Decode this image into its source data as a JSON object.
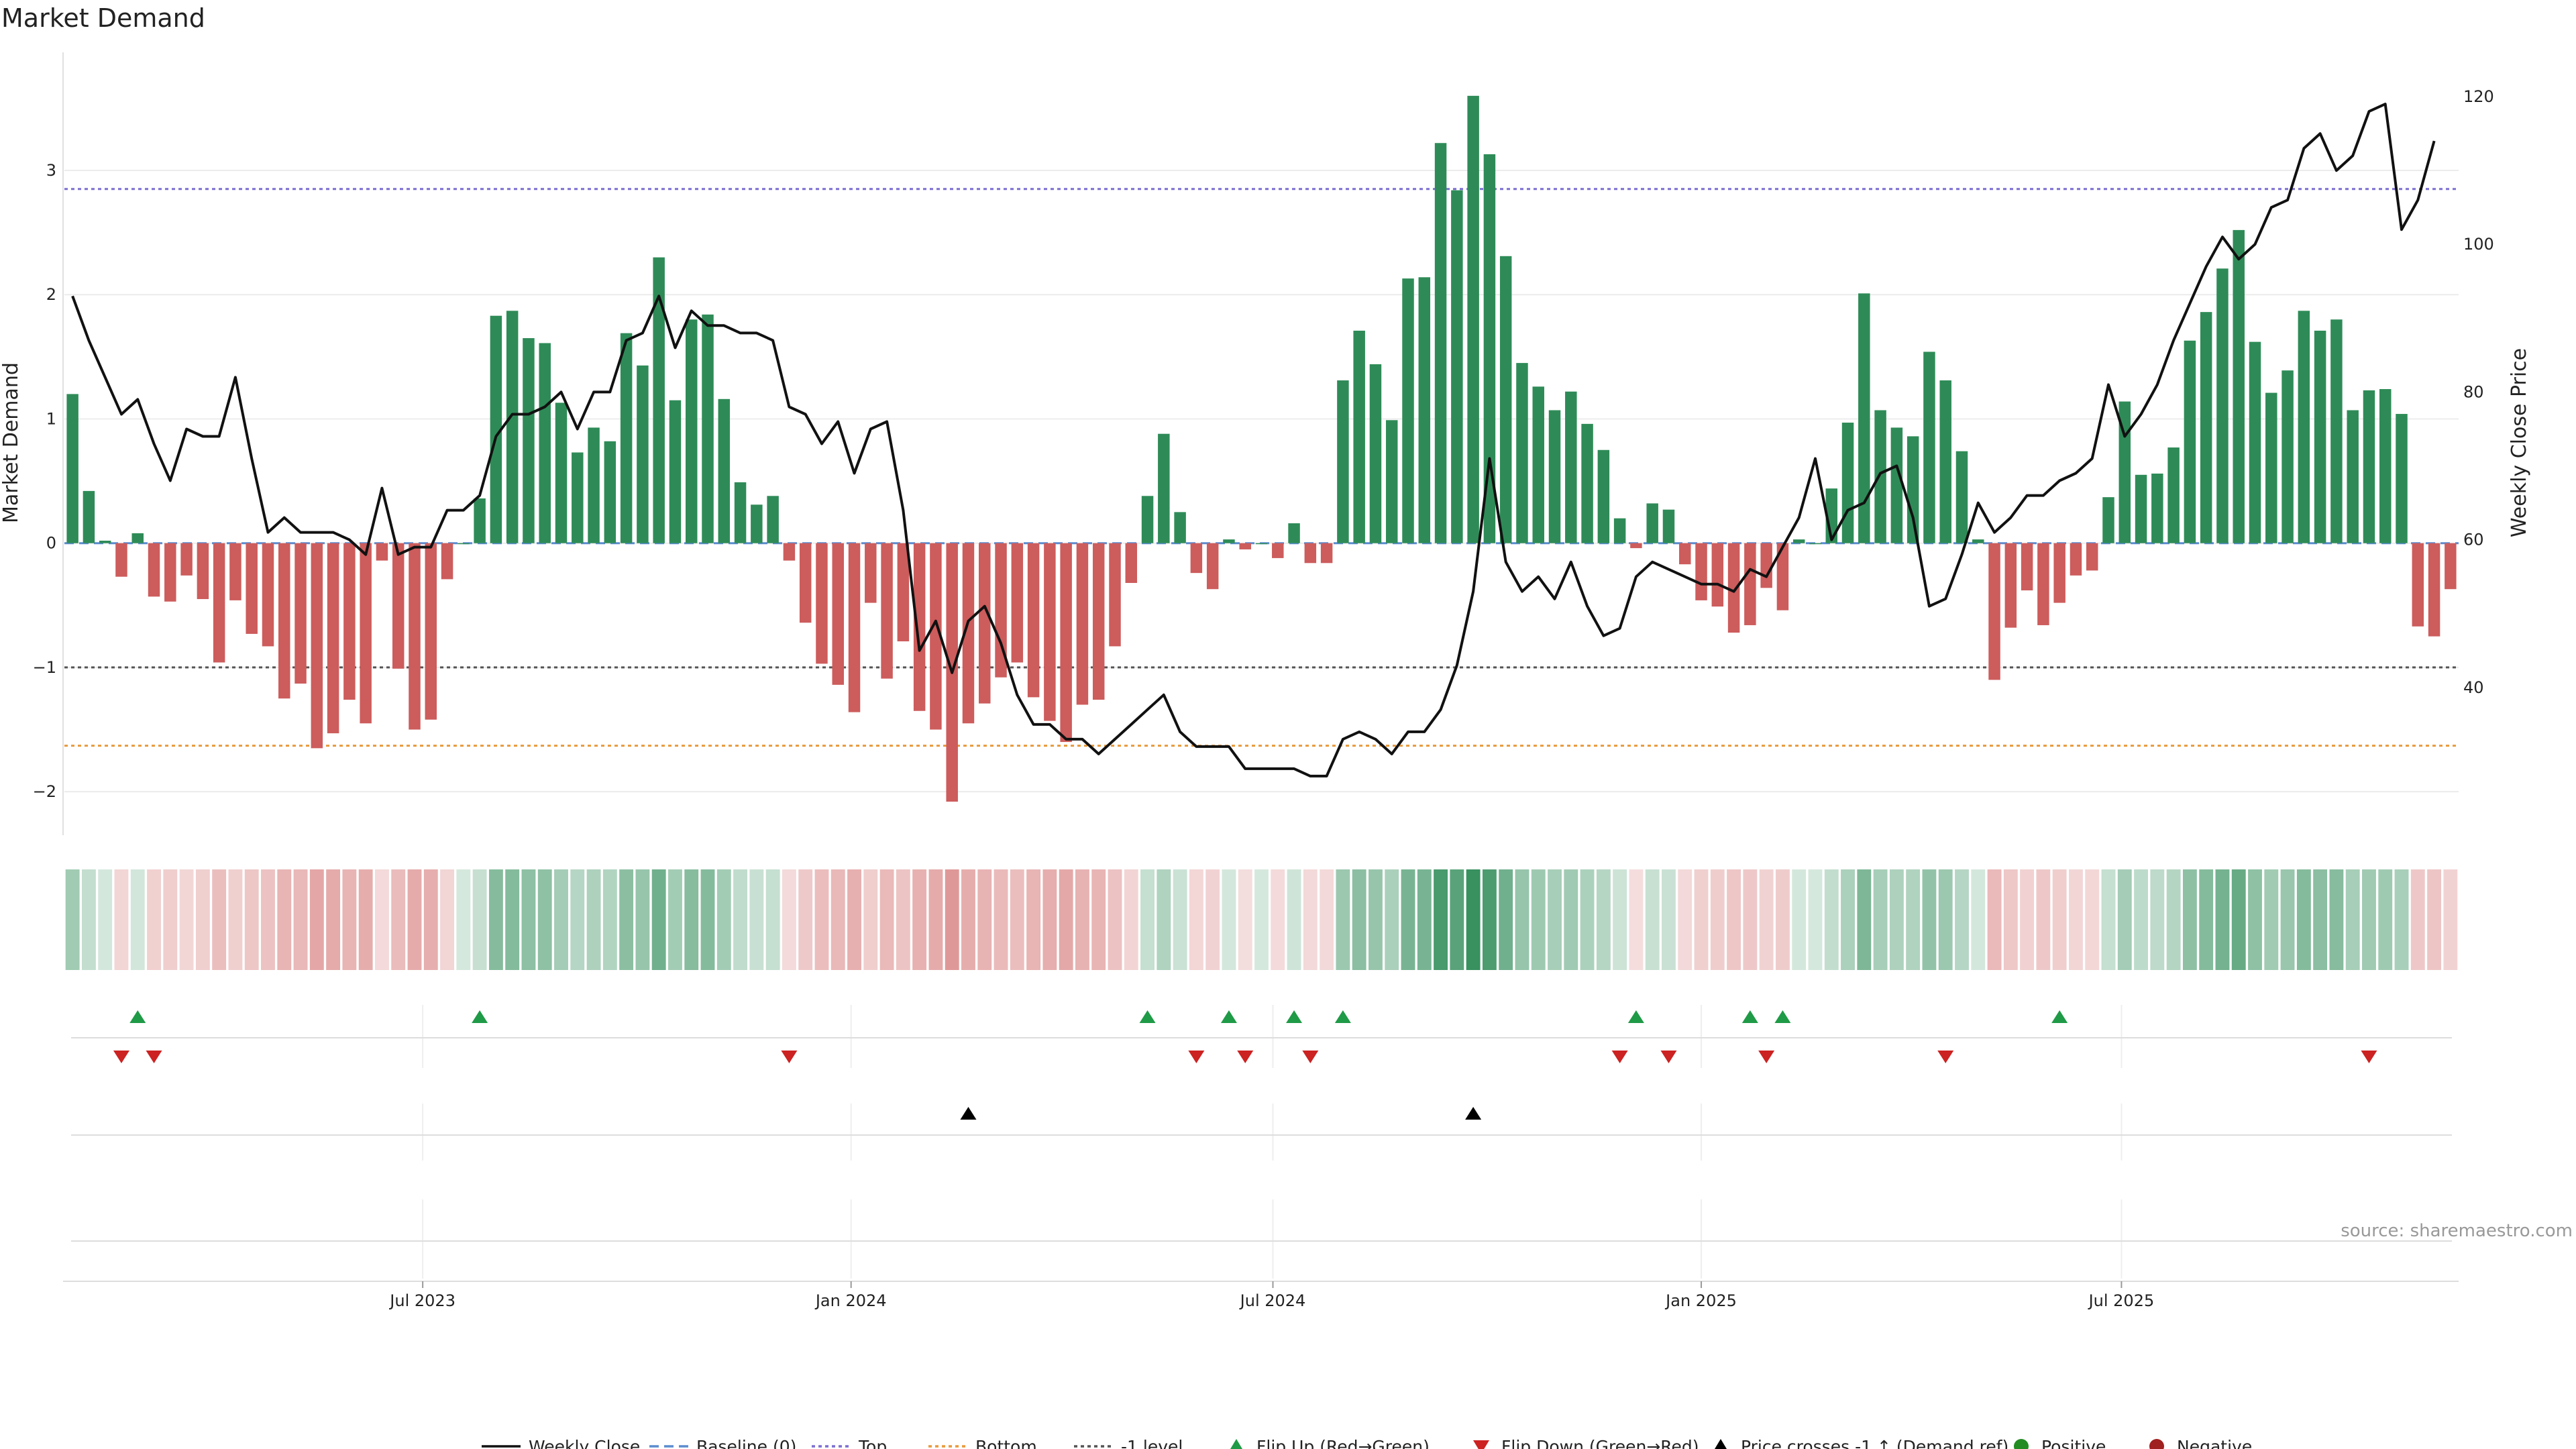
{
  "chart_data": {
    "type": "bar",
    "title": "Market Demand",
    "ylabel_left": "Market Demand",
    "ylabel_right": "Weekly Close Price",
    "ylim_left": [
      -2.35,
      3.95
    ],
    "ylim_right": [
      20,
      126
    ],
    "yticks_left": [
      "−2",
      "−1",
      "0",
      "1",
      "2",
      "3"
    ],
    "yticks_left_values": [
      -2,
      -1,
      0,
      1,
      2,
      3
    ],
    "yticks_right": [
      "40",
      "60",
      "80",
      "100",
      "120"
    ],
    "yticks_right_values": [
      40,
      60,
      80,
      100,
      120
    ],
    "xtick_labels": [
      "Jul 2023",
      "Jan 2024",
      "Jul 2024",
      "Jan 2025",
      "Jul 2025"
    ],
    "xtick_index": [
      22,
      48.3,
      74.2,
      100.5,
      126.3
    ],
    "reference_lines": {
      "top": 2.85,
      "bottom": -1.63,
      "minus_one": -1.0
    },
    "demand": [
      1.2,
      0.42,
      0.02,
      -0.27,
      0.08,
      -0.43,
      -0.47,
      -0.26,
      -0.45,
      -0.96,
      -0.46,
      -0.73,
      -0.83,
      -1.25,
      -1.13,
      -1.65,
      -1.53,
      -1.26,
      -1.45,
      -0.14,
      -1.01,
      -1.5,
      -1.42,
      -0.29,
      0.0,
      0.36,
      1.83,
      1.87,
      1.65,
      1.61,
      1.13,
      0.73,
      0.93,
      0.82,
      1.69,
      1.43,
      2.3,
      1.15,
      1.8,
      1.84,
      1.16,
      0.49,
      0.31,
      0.38,
      -0.14,
      -0.64,
      -0.97,
      -1.14,
      -1.36,
      -0.48,
      -1.09,
      -0.79,
      -1.35,
      -1.5,
      -2.08,
      -1.45,
      -1.29,
      -1.08,
      -0.96,
      -1.24,
      -1.43,
      -1.6,
      -1.3,
      -1.26,
      -0.83,
      -0.32,
      0.38,
      0.88,
      0.25,
      -0.24,
      -0.37,
      0.03,
      -0.05,
      0.0,
      -0.12,
      0.16,
      -0.16,
      -0.16,
      1.31,
      1.71,
      1.44,
      0.99,
      2.13,
      2.14,
      3.22,
      2.84,
      3.6,
      3.13,
      2.31,
      1.45,
      1.26,
      1.07,
      1.22,
      0.96,
      0.75,
      0.2,
      -0.04,
      0.32,
      0.27,
      -0.17,
      -0.46,
      -0.51,
      -0.72,
      -0.66,
      -0.36,
      -0.54,
      0.03,
      0.0,
      0.44,
      0.97,
      2.01,
      1.07,
      0.93,
      0.86,
      1.54,
      1.31,
      0.74,
      0.03,
      -1.1,
      -0.68,
      -0.38,
      -0.66,
      -0.48,
      -0.26,
      -0.22,
      0.37,
      1.14,
      0.55,
      0.56,
      0.77,
      1.63,
      1.86,
      2.21,
      2.52,
      1.62,
      1.21,
      1.39,
      1.87,
      1.71,
      1.8,
      1.07,
      1.23,
      1.24,
      1.04,
      -0.67,
      -0.75,
      -0.37
    ],
    "weekly_close": [
      93,
      87,
      82,
      77,
      79,
      73,
      68,
      75,
      74,
      74,
      82,
      71,
      61,
      63,
      61,
      61,
      61,
      60,
      58,
      67,
      58,
      59,
      59,
      64,
      64,
      66,
      74,
      77,
      77,
      78,
      80,
      75,
      80,
      80,
      87,
      88,
      93,
      86,
      91,
      89,
      89,
      88,
      88,
      87,
      78,
      77,
      73,
      76,
      69,
      75,
      76,
      64,
      45,
      49,
      42,
      49,
      51,
      46,
      39,
      35,
      35,
      33,
      33,
      31,
      33,
      35,
      37,
      39,
      34,
      32,
      32,
      32,
      29,
      29,
      29,
      29,
      28,
      28,
      33,
      34,
      33,
      31,
      34,
      34,
      37,
      43,
      53,
      71,
      57,
      53,
      55,
      52,
      57,
      51,
      47,
      48,
      55,
      57,
      56,
      55,
      54,
      54,
      53,
      56,
      55,
      59,
      63,
      71,
      60,
      64,
      65,
      69,
      70,
      63,
      51,
      52,
      58,
      65,
      61,
      63,
      66,
      66,
      68,
      69,
      71,
      81,
      74,
      77,
      81,
      87,
      92,
      97,
      101,
      98,
      100,
      105,
      106,
      113,
      115,
      110,
      112,
      118,
      119,
      102,
      106,
      114
    ],
    "weekly_close_start_index": 0.5,
    "flip_up_index": [
      4,
      25,
      66,
      71,
      75,
      78,
      96,
      103,
      105,
      122
    ],
    "flip_down_index": [
      3,
      5,
      44,
      69,
      72,
      76,
      95,
      98,
      104,
      115,
      141
    ],
    "price_cross_index": [
      55,
      86
    ],
    "legend": [
      "Weekly Close",
      "Baseline (0)",
      "Top",
      "Bottom",
      "-1 level",
      "Flip Up (Red→Green)",
      "Flip Down (Green→Red)",
      "Price crosses -1 ↑ (Demand ref)",
      "Positive",
      "Negative"
    ],
    "source": "source: sharemaestro.com"
  },
  "colors": {
    "positive": "#2e8b57",
    "negative": "#cd5c5c",
    "flip_up": "#1f9a46",
    "flip_down": "#cc2222",
    "cross": "#000000",
    "top_line": "#7b6fd1",
    "bottom_line": "#e89a3c",
    "baseline": "#5b8ccf",
    "minus_one_line": "#555555",
    "positive_dot": "#228b22",
    "negative_dot": "#a01f1f"
  }
}
